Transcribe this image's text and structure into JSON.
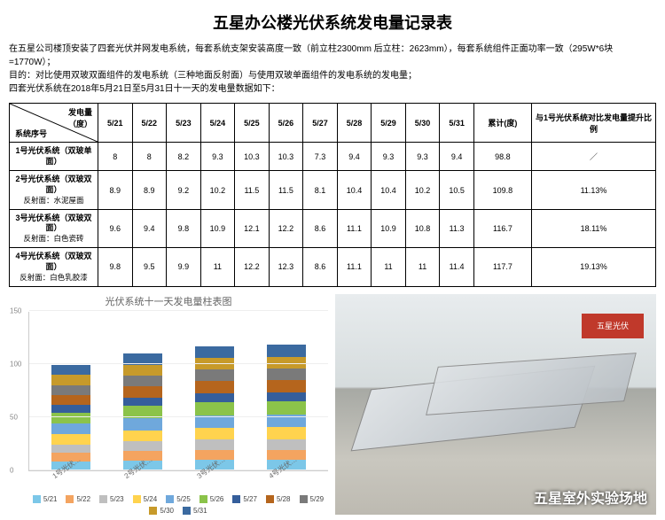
{
  "title": "五星办公楼光伏系统发电量记录表",
  "intro_lines": [
    "在五星公司楼顶安装了四套光伏并网发电系统，每套系统支架安装高度一致（前立柱2300mm 后立柱：2623mm），每套系统组件正面功率一致（295W*6块=1770W）；",
    "目的：对比使用双玻双面组件的发电系统（三种地面反射面）与使用双玻单面组件的发电系统的发电量；",
    "四套光伏系统在2018年5月21日至5月31日十一天的发电量数据如下："
  ],
  "table": {
    "diag_top": "发电量\n（度）",
    "diag_bottom": "系统序号",
    "date_cols": [
      "5/21",
      "5/22",
      "5/23",
      "5/24",
      "5/25",
      "5/26",
      "5/27",
      "5/28",
      "5/29",
      "5/30",
      "5/31"
    ],
    "sum_col": "累计(度)",
    "ratio_col": "与1号光伏系统对比发电量提升比例",
    "rows": [
      {
        "name": "1号光伏系统（双玻单面）",
        "sub": "",
        "v": [
          "8",
          "8",
          "8.2",
          "9.3",
          "10.3",
          "10.3",
          "7.3",
          "9.4",
          "9.3",
          "9.3",
          "9.4"
        ],
        "sum": "98.8",
        "ratio": "／"
      },
      {
        "name": "2号光伏系统（双玻双面）",
        "sub": "反射面：水泥屋面",
        "v": [
          "8.9",
          "8.9",
          "9.2",
          "10.2",
          "11.5",
          "11.5",
          "8.1",
          "10.4",
          "10.4",
          "10.2",
          "10.5"
        ],
        "sum": "109.8",
        "ratio": "11.13%"
      },
      {
        "name": "3号光伏系统（双玻双面）",
        "sub": "反射面：白色瓷砖",
        "v": [
          "9.6",
          "9.4",
          "9.8",
          "10.9",
          "12.1",
          "12.2",
          "8.6",
          "11.1",
          "10.9",
          "10.8",
          "11.3"
        ],
        "sum": "116.7",
        "ratio": "18.11%"
      },
      {
        "name": "4号光伏系统（双玻双面）",
        "sub": "反射面：白色乳胶漆",
        "v": [
          "9.8",
          "9.5",
          "9.9",
          "11",
          "12.2",
          "12.3",
          "8.6",
          "11.1",
          "11",
          "11",
          "11.4"
        ],
        "sum": "117.7",
        "ratio": "19.13%"
      }
    ]
  },
  "chart": {
    "title": "光伏系统十一天发电量柱表图",
    "ylim": [
      0,
      150
    ],
    "ytick_step": 50,
    "categories": [
      "1号光伏…",
      "2号光伏…",
      "3号光伏…",
      "4号光伏…"
    ],
    "series_labels": [
      "5/21",
      "5/22",
      "5/23",
      "5/24",
      "5/25",
      "5/26",
      "5/27",
      "5/28",
      "5/29",
      "5/30",
      "5/31"
    ],
    "series_colors": [
      "#7cc7e8",
      "#f4a460",
      "#bfbfbf",
      "#ffd34e",
      "#6fa8dc",
      "#8bc34a",
      "#355e9b",
      "#b5651d",
      "#7a7a7a",
      "#c79a2a",
      "#3b6aa0"
    ],
    "stacks": [
      [
        8,
        8,
        8.2,
        9.3,
        10.3,
        10.3,
        7.3,
        9.4,
        9.3,
        9.3,
        9.4
      ],
      [
        8.9,
        8.9,
        9.2,
        10.2,
        11.5,
        11.5,
        8.1,
        10.4,
        10.4,
        10.2,
        10.5
      ],
      [
        9.6,
        9.4,
        9.8,
        10.9,
        12.1,
        12.2,
        8.6,
        11.1,
        10.9,
        10.8,
        11.3
      ],
      [
        9.8,
        9.5,
        9.9,
        11,
        12.2,
        12.3,
        8.6,
        11.1,
        11,
        11,
        11.4
      ]
    ],
    "background_color": "#ffffff",
    "grid_color": "#eeeeee"
  },
  "photo": {
    "caption": "五星室外实验场地",
    "sign": "五星光伏"
  }
}
